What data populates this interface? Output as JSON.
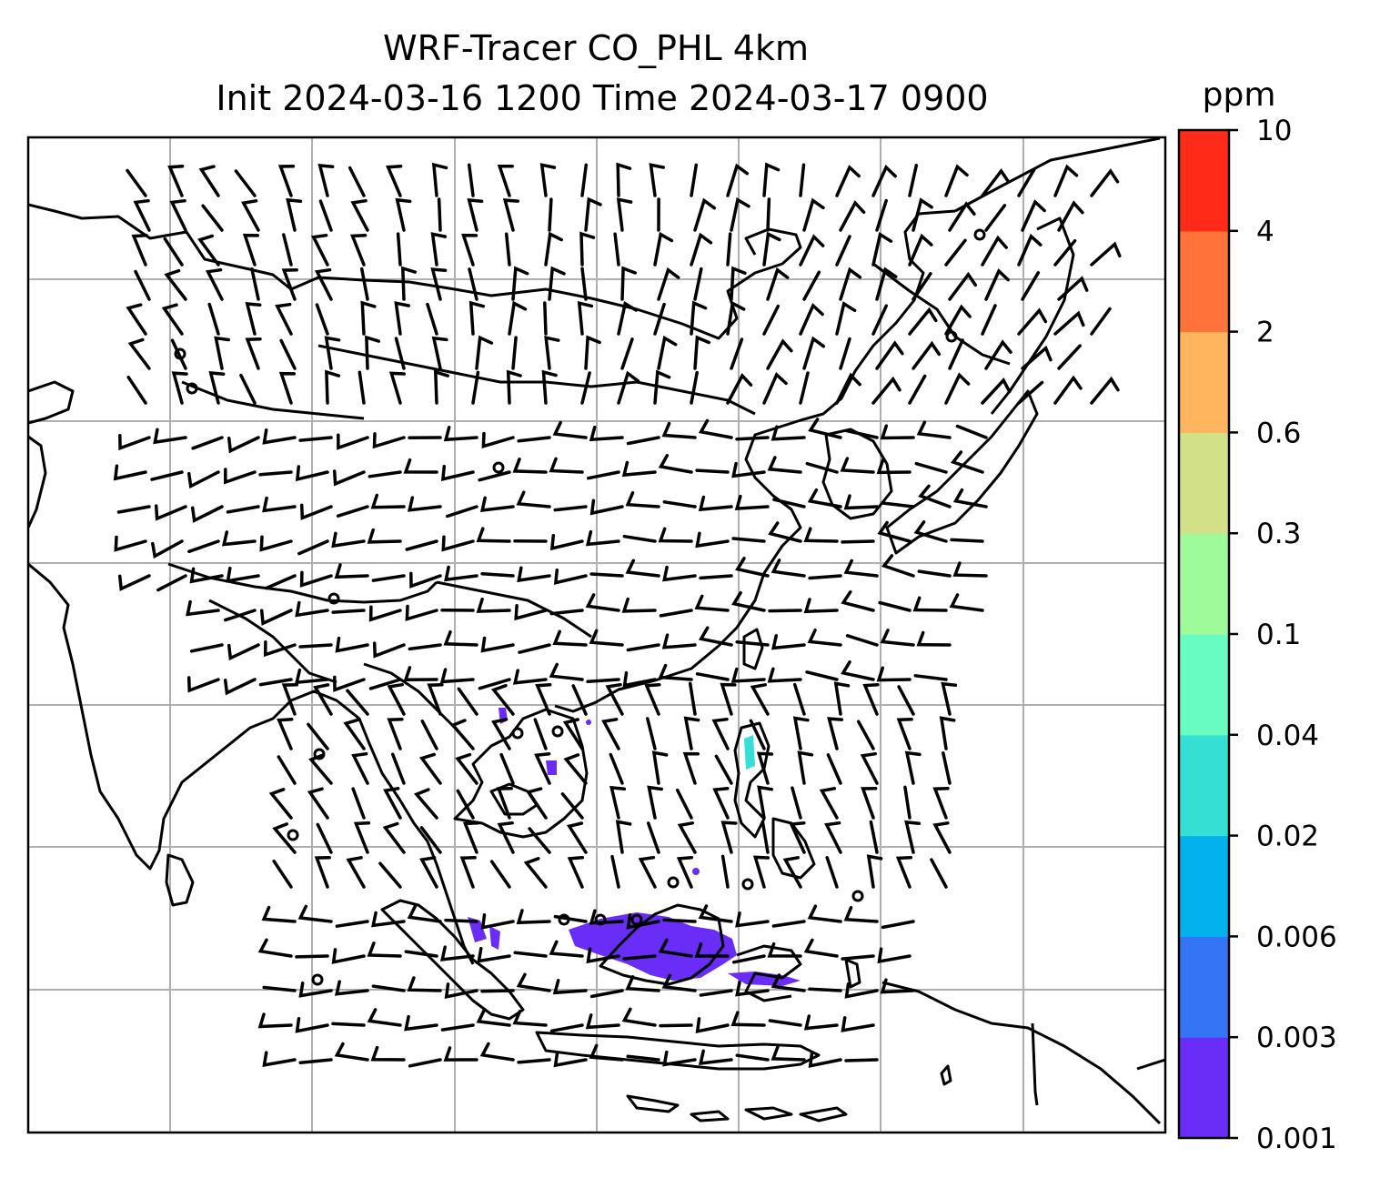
{
  "title_line1": "WRF-Tracer CO_PHL 4km",
  "title_line2": "Init 2024-03-16 1200 Time 2024-03-17 0900",
  "colorbar": {
    "unit": "ppm",
    "tick_labels": [
      "0.001",
      "0.003",
      "0.006",
      "0.02",
      "0.04",
      "0.1",
      "0.3",
      "0.6",
      "2",
      "4",
      "10"
    ],
    "colors": [
      "#6a2cf7",
      "#3474f5",
      "#03b1ed",
      "#35dfd4",
      "#69fcc1",
      "#9ffb9a",
      "#d2e187",
      "#ffb55d",
      "#ff7239",
      "#ff2a17"
    ]
  },
  "map": {
    "grid": true,
    "land_color": "#ffffff",
    "coastline_color": "#000000",
    "grid_color": "#b0b0b0",
    "wind_barb_color": "#000000",
    "tracer_level_shown": "0.001"
  }
}
